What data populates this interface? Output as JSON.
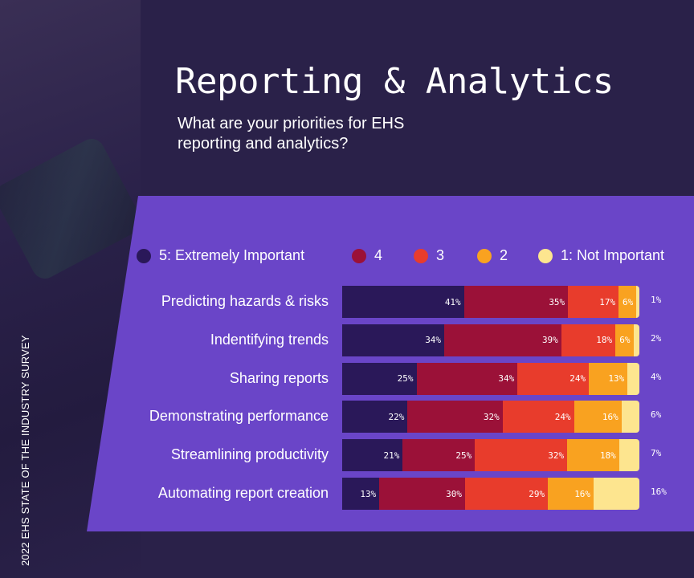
{
  "header": {
    "title": "Reporting & Analytics",
    "subtitle": "What are your priorities for EHS reporting and analytics?",
    "side_caption": "2022 EHS STATE OF THE INDUSTRY SURVEY"
  },
  "colors": {
    "background": "#2a2149",
    "panel": "#6a45c8",
    "level5": "#2a1859",
    "level4": "#9b1138",
    "level3": "#e83c2c",
    "level2": "#f9a220",
    "level1": "#fde58f"
  },
  "chart_data": {
    "type": "bar",
    "orientation": "horizontal",
    "stacked": true,
    "legend_position": "top",
    "categories": [
      "Predicting hazards & risks",
      "Indentifying trends",
      "Sharing reports",
      "Demonstrating performance",
      "Streamlining productivity",
      "Automating report creation"
    ],
    "series": [
      {
        "name": "5: Extremely Important",
        "color": "#2a1859",
        "values": [
          41,
          34,
          25,
          22,
          21,
          13
        ]
      },
      {
        "name": "4",
        "color": "#9b1138",
        "values": [
          35,
          39,
          34,
          32,
          25,
          30
        ]
      },
      {
        "name": "3",
        "color": "#e83c2c",
        "values": [
          17,
          18,
          24,
          24,
          32,
          29
        ]
      },
      {
        "name": "2",
        "color": "#f9a220",
        "values": [
          6,
          6,
          13,
          16,
          18,
          16
        ]
      },
      {
        "name": "1: Not Important",
        "color": "#fde58f",
        "values": [
          1,
          2,
          4,
          6,
          7,
          16
        ]
      }
    ],
    "value_suffix": "%"
  }
}
